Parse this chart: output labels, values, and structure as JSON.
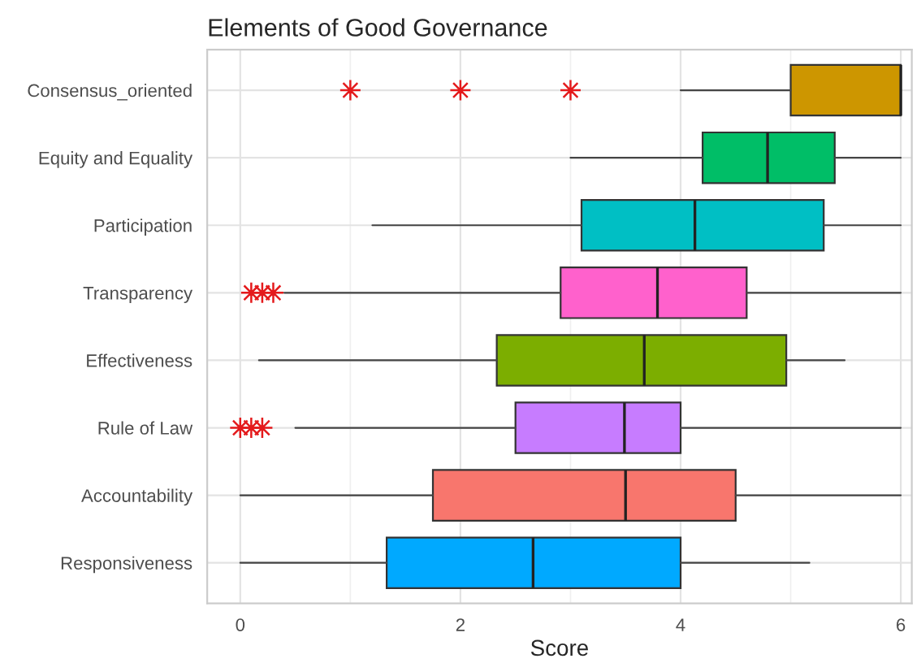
{
  "chart_data": {
    "type": "box",
    "orientation": "horizontal",
    "title": "Elements of Good Governance",
    "xlabel": "Score",
    "categories": [
      "Consensus_oriented",
      "Equity and Equality",
      "Participation",
      "Transparency",
      "Effectiveness",
      "Rule of Law",
      "Accountability",
      "Responsiveness"
    ],
    "colors": [
      "#cd9600",
      "#00be67",
      "#00bfc4",
      "#ff61cc",
      "#7cae00",
      "#c77cff",
      "#f8766d",
      "#00a9ff"
    ],
    "boxes": [
      {
        "low": 4.0,
        "q1": 5.0,
        "median": 6.0,
        "q3": 6.0,
        "high": 6.0,
        "outliers": [
          1.0,
          2.0,
          3.0
        ]
      },
      {
        "low": 3.0,
        "q1": 4.2,
        "median": 4.79,
        "q3": 5.4,
        "high": 6.0
      },
      {
        "low": 1.2,
        "q1": 3.1,
        "median": 4.13,
        "q3": 5.3,
        "high": 6.0
      },
      {
        "low": 0.4,
        "q1": 2.91,
        "median": 3.79,
        "q3": 4.6,
        "high": 6.0,
        "outliers": [
          0.1,
          0.2,
          0.3
        ]
      },
      {
        "low": 0.17,
        "q1": 2.33,
        "median": 3.67,
        "q3": 4.96,
        "high": 5.49
      },
      {
        "low": 0.5,
        "q1": 2.5,
        "median": 3.49,
        "q3": 4.0,
        "high": 6.0,
        "outliers": [
          0.0,
          0.1,
          0.2
        ]
      },
      {
        "low": 0.0,
        "q1": 1.75,
        "median": 3.5,
        "q3": 4.5,
        "high": 6.0
      },
      {
        "low": 0.0,
        "q1": 1.33,
        "median": 2.66,
        "q3": 4.0,
        "high": 5.17
      }
    ],
    "xlim": [
      -0.3,
      6.1
    ],
    "xticks": [
      0,
      2,
      4,
      6
    ],
    "grid": true,
    "marker": "star"
  }
}
